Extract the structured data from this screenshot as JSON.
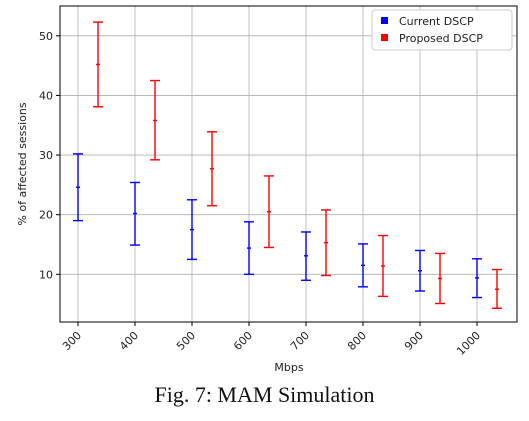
{
  "caption": "Fig. 7: MAM Simulation",
  "chart_data": {
    "type": "errorbar",
    "title": "",
    "xlabel": "Mbps",
    "ylabel": "% of affected sessions",
    "categories": [
      "300",
      "400",
      "500",
      "600",
      "700",
      "800",
      "900",
      "1000"
    ],
    "ylim": [
      2,
      55
    ],
    "yticks": [
      10,
      20,
      30,
      40,
      50
    ],
    "grid": true,
    "legend_position": "top-right",
    "series": [
      {
        "name": "Current DSCP",
        "color": "#0000ff",
        "mean": [
          24.6,
          20.2,
          17.5,
          14.4,
          13.1,
          11.5,
          10.6,
          9.4
        ],
        "lower": [
          19.0,
          14.9,
          12.5,
          10.0,
          9.0,
          7.9,
          7.2,
          6.1
        ],
        "upper": [
          30.2,
          25.4,
          22.5,
          18.8,
          17.1,
          15.1,
          14.0,
          12.6
        ]
      },
      {
        "name": "Proposed DSCP",
        "color": "#ff0000",
        "mean": [
          45.2,
          35.8,
          27.7,
          20.5,
          15.3,
          11.4,
          9.3,
          7.5
        ],
        "lower": [
          38.1,
          29.2,
          21.5,
          14.5,
          9.8,
          6.3,
          5.1,
          4.3
        ],
        "upper": [
          52.3,
          42.5,
          33.9,
          26.5,
          20.8,
          16.5,
          13.5,
          10.8
        ]
      }
    ]
  }
}
